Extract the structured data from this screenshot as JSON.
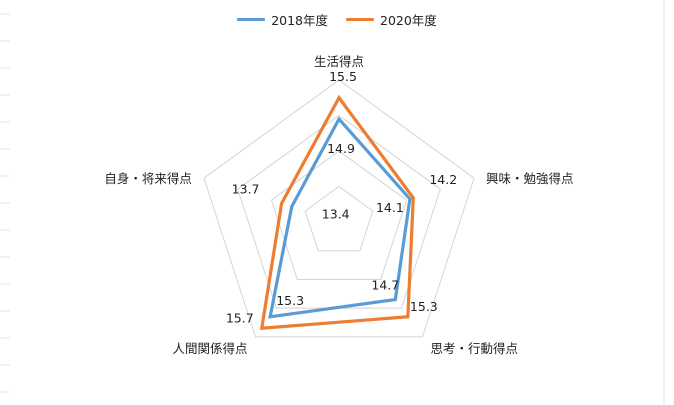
{
  "chart_data": {
    "type": "radar",
    "title": "",
    "categories": [
      "生活得点",
      "興味・勉強得点",
      "思考・行動得点",
      "人間関係得点",
      "自身・将来得点"
    ],
    "series": [
      {
        "name": "2018年度",
        "values": [
          14.9,
          14.1,
          14.7,
          15.3,
          13.4
        ]
      },
      {
        "name": "2020年度",
        "values": [
          15.5,
          14.2,
          15.3,
          15.7,
          13.7
        ]
      }
    ],
    "value_labels": {
      "2018年度": [
        "14.9",
        "14.1",
        "14.7",
        "15.3",
        "13.4"
      ],
      "2020年度": [
        "15.5",
        "14.2",
        "15.3",
        "15.7",
        "13.7"
      ]
    },
    "r_range": [
      12,
      16
    ],
    "grid": true,
    "legend": "top-center",
    "colors": {
      "2018年度": "#5b9bd5",
      "2020年度": "#ed7d31",
      "grid": "#d4d4d4"
    }
  }
}
